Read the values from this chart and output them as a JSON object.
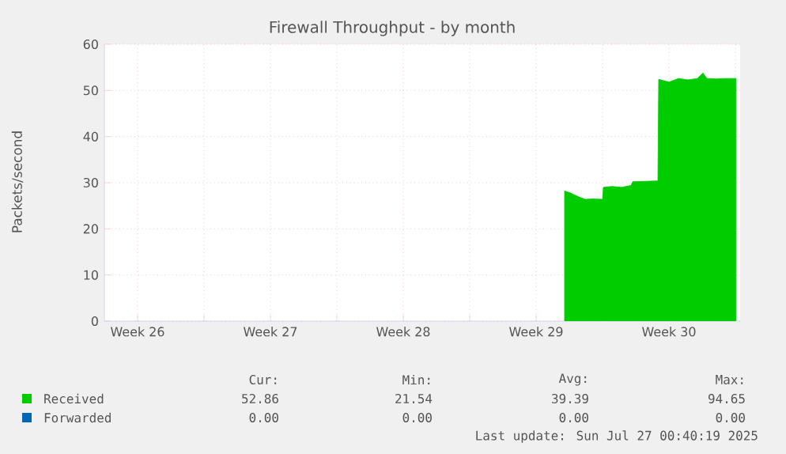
{
  "chart_data": {
    "type": "area",
    "title": "Firewall Throughput - by month",
    "ylabel": "Packets/second",
    "x": [
      "2025-07-18T00:00",
      "2025-07-18T07:00",
      "2025-07-18T17:00",
      "2025-07-19T02:00",
      "2025-07-19T12:00",
      "2025-07-20T00:00",
      "2025-07-20T01:00",
      "2025-07-20T12:00",
      "2025-07-21T00:00",
      "2025-07-21T12:00",
      "2025-07-21T14:00",
      "2025-07-22T05:00",
      "2025-07-22T22:00",
      "2025-07-22T23:00",
      "2025-07-23T12:00",
      "2025-07-24T00:00",
      "2025-07-24T12:00",
      "2025-07-25T00:00",
      "2025-07-25T07:00",
      "2025-07-25T12:00",
      "2025-07-26T00:00",
      "2025-07-26T12:00",
      "2025-07-27T00:40"
    ],
    "series": [
      {
        "name": "Received",
        "color": "#00cc00",
        "values": [
          28.2,
          27.8,
          27.0,
          26.4,
          26.5,
          26.4,
          29.0,
          29.2,
          29.0,
          29.4,
          30.2,
          30.3,
          30.4,
          52.4,
          51.8,
          52.6,
          52.3,
          52.6,
          53.8,
          52.6,
          52.5,
          52.6,
          52.6
        ]
      },
      {
        "name": "Forwarded",
        "color": "#0066b3",
        "values": [
          null,
          null,
          null,
          null,
          null,
          null,
          null,
          null,
          null,
          null,
          null,
          null,
          null,
          null,
          null,
          null,
          null,
          null,
          null,
          null,
          null,
          null,
          null
        ]
      }
    ],
    "xlim": [
      "2025-06-23T18:00",
      "2025-07-27T06:00"
    ],
    "xticks": [
      {
        "value": "2025-06-25T12:00",
        "label": "Week 26"
      },
      {
        "value": "2025-06-29",
        "label": null
      },
      {
        "value": "2025-07-02T12:00",
        "label": "Week 27"
      },
      {
        "value": "2025-07-06",
        "label": null
      },
      {
        "value": "2025-07-09T12:00",
        "label": "Week 28"
      },
      {
        "value": "2025-07-13",
        "label": null
      },
      {
        "value": "2025-07-16T12:00",
        "label": "Week 29"
      },
      {
        "value": "2025-07-20",
        "label": null
      },
      {
        "value": "2025-07-23T12:00",
        "label": "Week 30"
      },
      {
        "value": "2025-07-27",
        "label": null
      }
    ],
    "ylim": [
      0,
      60
    ],
    "yticks": [
      0,
      10,
      20,
      30,
      40,
      50,
      60
    ],
    "grid": true,
    "legend": "bottom",
    "annotations": [
      "Cur:",
      "Min:",
      "Avg:",
      "Max:",
      "52.86",
      "21.54",
      "39.39",
      "94.65",
      "0.00",
      "0.00",
      "0.00",
      "0.00",
      "Last update: Sun Jul 27 00:40:19 2025"
    ]
  }
}
